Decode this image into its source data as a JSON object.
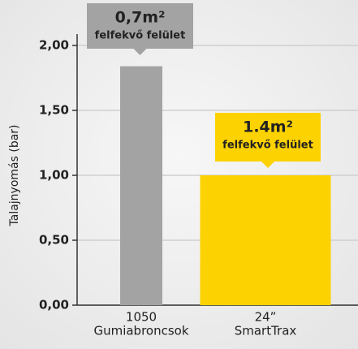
{
  "chart_data": {
    "type": "bar",
    "y_axis_label": "Talajnyomás (bar)",
    "categories": [
      [
        "1050",
        "Gumiabroncsok"
      ],
      [
        "24”",
        "SmartTrax"
      ]
    ],
    "values": [
      1.84,
      1.0
    ],
    "colors": [
      "#a3a3a3",
      "#fcd200"
    ],
    "ylim": [
      0,
      2
    ],
    "yticks": [
      {
        "value": 0,
        "label": "0,00"
      },
      {
        "value": 0.5,
        "label": "0,50"
      },
      {
        "value": 1,
        "label": "1,00"
      },
      {
        "value": 1.5,
        "label": "1,50"
      },
      {
        "value": 2,
        "label": "2,00"
      }
    ],
    "grid": true,
    "annotations": [
      {
        "lines": [
          "0,7m²",
          "felfekvő felület"
        ],
        "color": "#a3a3a3"
      },
      {
        "lines": [
          "1.4m²",
          "felfekvő felület"
        ],
        "color": "#fcd200"
      }
    ]
  }
}
